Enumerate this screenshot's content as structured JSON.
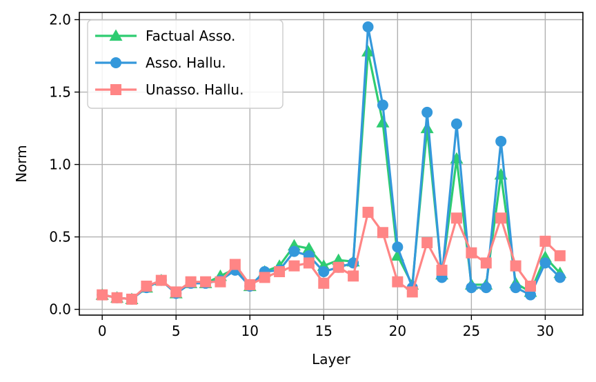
{
  "chart_data": {
    "type": "line",
    "title": "",
    "xlabel": "Layer",
    "ylabel": "Norm",
    "xlim": [
      -1.55,
      32.55
    ],
    "ylim": [
      -0.04,
      2.05
    ],
    "xticks": [
      0,
      5,
      10,
      15,
      20,
      25,
      30
    ],
    "yticks": [
      0.0,
      0.5,
      1.0,
      1.5,
      2.0
    ],
    "ytick_labels": [
      "0.0",
      "0.5",
      "1.0",
      "1.5",
      "2.0"
    ],
    "grid": true,
    "legend_position": "top-left",
    "x": [
      0,
      1,
      2,
      3,
      4,
      5,
      6,
      7,
      8,
      9,
      10,
      11,
      12,
      13,
      14,
      15,
      16,
      17,
      18,
      19,
      20,
      21,
      22,
      23,
      24,
      25,
      26,
      27,
      28,
      29,
      30,
      31
    ],
    "series": [
      {
        "name": "Factual Asso.",
        "color": "#2ecc71",
        "marker": "triangle",
        "values": [
          0.1,
          0.08,
          0.07,
          0.15,
          0.2,
          0.11,
          0.18,
          0.18,
          0.23,
          0.28,
          0.16,
          0.26,
          0.3,
          0.44,
          0.42,
          0.3,
          0.34,
          0.33,
          1.78,
          1.29,
          0.37,
          0.17,
          1.25,
          0.24,
          1.04,
          0.17,
          0.17,
          0.93,
          0.18,
          0.12,
          0.36,
          0.25
        ]
      },
      {
        "name": "Asso. Hallu.",
        "color": "#3498db",
        "marker": "circle",
        "values": [
          0.1,
          0.08,
          0.07,
          0.15,
          0.2,
          0.11,
          0.18,
          0.18,
          0.2,
          0.27,
          0.16,
          0.26,
          0.27,
          0.4,
          0.37,
          0.26,
          0.29,
          0.32,
          1.95,
          1.41,
          0.43,
          0.15,
          1.36,
          0.22,
          1.28,
          0.15,
          0.15,
          1.16,
          0.15,
          0.1,
          0.32,
          0.22
        ]
      },
      {
        "name": "Unasso. Hallu.",
        "color": "#ff8585",
        "marker": "square",
        "values": [
          0.1,
          0.08,
          0.07,
          0.16,
          0.2,
          0.12,
          0.19,
          0.19,
          0.19,
          0.31,
          0.17,
          0.22,
          0.26,
          0.3,
          0.32,
          0.18,
          0.29,
          0.23,
          0.67,
          0.53,
          0.19,
          0.12,
          0.46,
          0.27,
          0.63,
          0.39,
          0.32,
          0.63,
          0.3,
          0.16,
          0.47,
          0.37
        ]
      }
    ]
  }
}
